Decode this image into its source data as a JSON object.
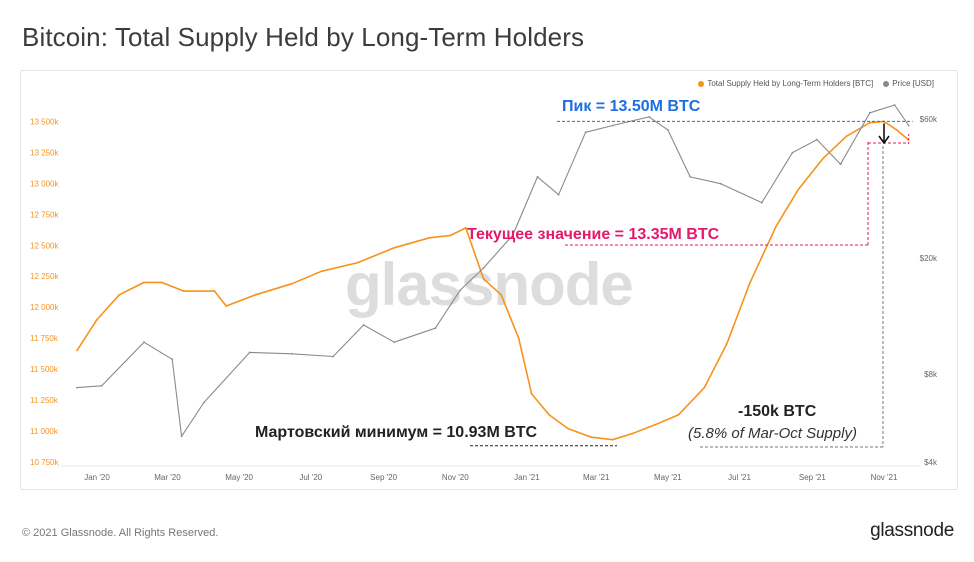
{
  "title": "Bitcoin: Total Supply Held by Long-Term Holders",
  "footer": "© 2021 Glassnode. All Rights Reserved.",
  "brand": "glassnode",
  "watermark": "glassnode",
  "legend": {
    "lth_label": "Total Supply Held by Long-Term Holders [BTC]",
    "price_label": "Price [USD]"
  },
  "colors": {
    "lth": "#f7931a",
    "price": "#8a8a8a",
    "peak": "#1e6fe0",
    "current": "#e3196b",
    "minimum": "#222222"
  },
  "annotations": {
    "peak": "Пик  = 13.50M BTC",
    "current": "Текущее значение  = 13.35M BTC",
    "minimum": "Мартовский минимум = 10.93M BTC",
    "diff": "-150k BTC",
    "pct": "(5.8% of Mar-Oct Supply)"
  },
  "chart_data": {
    "type": "line",
    "title": "Bitcoin: Total Supply Held by Long-Term Holders",
    "x_ticks": [
      "Jan '20",
      "Mar '20",
      "May '20",
      "Jul '20",
      "Sep '20",
      "Nov '20",
      "Jan '21",
      "Mar '21",
      "May '21",
      "Jul '21",
      "Sep '21",
      "Nov '21"
    ],
    "y_left_ticks": [
      "10 750k",
      "11 000k",
      "11 250k",
      "11 500k",
      "11 750k",
      "12 000k",
      "12 250k",
      "12 500k",
      "12 750k",
      "13 000k",
      "13 250k",
      "13 500k"
    ],
    "y_left_range": [
      10750000,
      13560000
    ],
    "y_right_ticks": [
      "$4k",
      "$8k",
      "$20k",
      "$60k"
    ],
    "y_right_scale": "log",
    "series": [
      {
        "name": "Total Supply Held by Long-Term Holders [BTC]",
        "axis": "left",
        "dates": [
          "2019-12-15",
          "2020-01-01",
          "2020-01-20",
          "2020-02-10",
          "2020-02-25",
          "2020-03-15",
          "2020-04-10",
          "2020-04-20",
          "2020-05-15",
          "2020-06-15",
          "2020-07-10",
          "2020-08-10",
          "2020-09-10",
          "2020-10-10",
          "2020-10-28",
          "2020-11-10",
          "2020-11-25",
          "2020-12-10",
          "2020-12-25",
          "2021-01-05",
          "2021-01-20",
          "2021-02-05",
          "2021-02-25",
          "2021-03-15",
          "2021-04-01",
          "2021-04-20",
          "2021-05-10",
          "2021-06-01",
          "2021-06-20",
          "2021-07-10",
          "2021-08-01",
          "2021-08-20",
          "2021-09-10",
          "2021-09-30",
          "2021-10-20",
          "2021-11-01",
          "2021-11-12",
          "2021-11-22"
        ],
        "values": [
          11650000,
          11900000,
          12100000,
          12200000,
          12200000,
          12130000,
          12130000,
          12010000,
          12100000,
          12190000,
          12290000,
          12360000,
          12480000,
          12560000,
          12580000,
          12640000,
          12230000,
          12100000,
          11750000,
          11300000,
          11130000,
          11020000,
          10950000,
          10930000,
          10980000,
          11050000,
          11130000,
          11350000,
          11700000,
          12200000,
          12650000,
          12950000,
          13200000,
          13380000,
          13490000,
          13500000,
          13430000,
          13350000
        ]
      },
      {
        "name": "Price [USD]",
        "axis": "right",
        "dates": [
          "2019-12-15",
          "2020-01-05",
          "2020-02-10",
          "2020-03-05",
          "2020-03-13",
          "2020-04-01",
          "2020-05-10",
          "2020-06-15",
          "2020-07-20",
          "2020-08-15",
          "2020-09-10",
          "2020-10-15",
          "2020-11-05",
          "2020-11-25",
          "2020-12-20",
          "2021-01-10",
          "2021-01-28",
          "2021-02-20",
          "2021-03-15",
          "2021-04-15",
          "2021-05-01",
          "2021-05-20",
          "2021-06-15",
          "2021-07-20",
          "2021-08-15",
          "2021-09-05",
          "2021-09-25",
          "2021-10-20",
          "2021-11-10",
          "2021-11-22"
        ],
        "values": [
          7200,
          7300,
          10300,
          9000,
          4900,
          6400,
          9500,
          9400,
          9200,
          11800,
          10300,
          11500,
          15500,
          18500,
          24000,
          38000,
          33000,
          54000,
          57000,
          61000,
          55000,
          38000,
          36000,
          31000,
          46000,
          51000,
          42000,
          63000,
          67000,
          57000
        ]
      }
    ],
    "reference_values": {
      "peak": 13500000,
      "current": 13350000,
      "march_minimum": 10930000,
      "difference": -150000,
      "difference_pct_of_mar_oct_supply": 5.8
    }
  }
}
